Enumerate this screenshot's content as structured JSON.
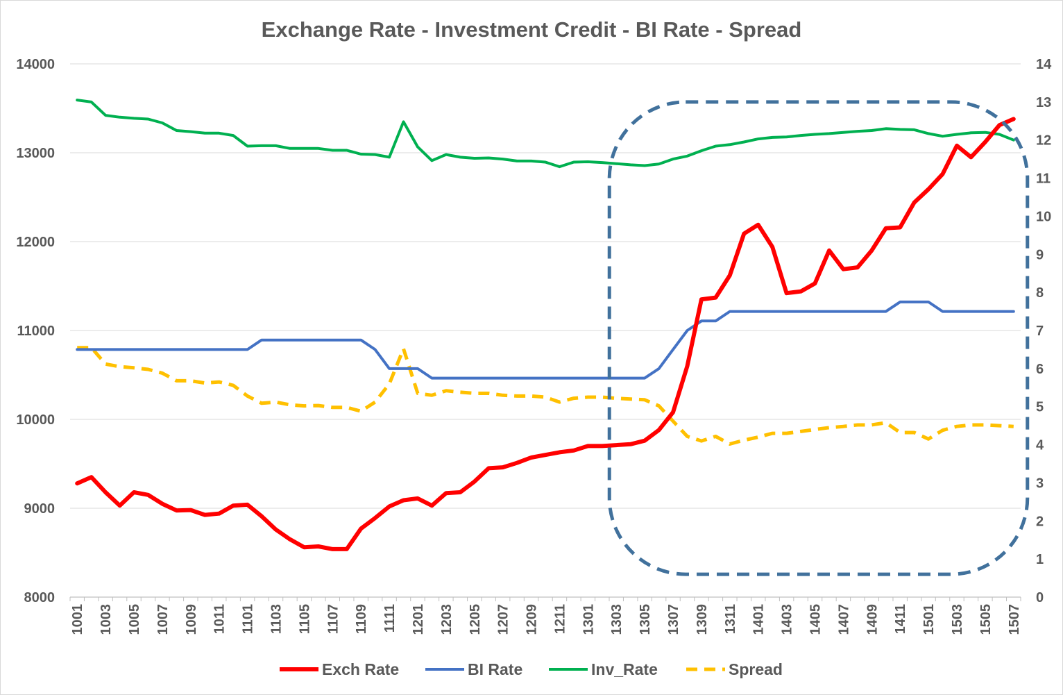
{
  "chart_data": {
    "type": "line",
    "title": "Exchange Rate - Investment Credit - BI Rate - Spread",
    "xlabel": "",
    "ylabel_left": "",
    "ylabel_right": "",
    "x_tick_labels": [
      "1001",
      "1003",
      "1005",
      "1007",
      "1009",
      "1011",
      "1101",
      "1103",
      "1105",
      "1107",
      "1109",
      "1111",
      "1201",
      "1203",
      "1205",
      "1207",
      "1209",
      "1211",
      "1301",
      "1303",
      "1305",
      "1307",
      "1309",
      "1311",
      "1401",
      "1403",
      "1405",
      "1407",
      "1409",
      "1411",
      "1501",
      "1503",
      "1505",
      "1507"
    ],
    "x": [
      "1001",
      "1002",
      "1003",
      "1004",
      "1005",
      "1006",
      "1007",
      "1008",
      "1009",
      "1010",
      "1011",
      "1012",
      "1101",
      "1102",
      "1103",
      "1104",
      "1105",
      "1106",
      "1107",
      "1108",
      "1109",
      "1110",
      "1111",
      "1112",
      "1201",
      "1202",
      "1203",
      "1204",
      "1205",
      "1206",
      "1207",
      "1208",
      "1209",
      "1210",
      "1211",
      "1212",
      "1301",
      "1302",
      "1303",
      "1304",
      "1305",
      "1306",
      "1307",
      "1308",
      "1309",
      "1310",
      "1311",
      "1312",
      "1401",
      "1402",
      "1403",
      "1404",
      "1405",
      "1406",
      "1407",
      "1408",
      "1409",
      "1410",
      "1411",
      "1412",
      "1501",
      "1502",
      "1503",
      "1504",
      "1505",
      "1506",
      "1507"
    ],
    "y_left": {
      "min": 8000,
      "max": 14000,
      "ticks": [
        8000,
        9000,
        10000,
        11000,
        12000,
        13000,
        14000
      ]
    },
    "y_right": {
      "min": 0,
      "max": 14,
      "ticks": [
        0,
        1,
        2,
        3,
        4,
        5,
        6,
        7,
        8,
        9,
        10,
        11,
        12,
        13,
        14
      ]
    },
    "grid": true,
    "legend_position": "bottom",
    "series": [
      {
        "name": "Exch Rate",
        "axis": "left",
        "color": "#ff0000",
        "style": "solid",
        "values": [
          9280,
          9350,
          9180,
          9030,
          9180,
          9150,
          9050,
          8975,
          8980,
          8925,
          8940,
          9030,
          9040,
          8910,
          8760,
          8650,
          8560,
          8570,
          8540,
          8540,
          8770,
          8890,
          9020,
          9090,
          9110,
          9030,
          9170,
          9180,
          9300,
          9450,
          9460,
          9510,
          9570,
          9600,
          9630,
          9650,
          9700,
          9700,
          9710,
          9720,
          9760,
          9880,
          10080,
          10600,
          11350,
          11370,
          11620,
          12090,
          12190,
          11940,
          11420,
          11440,
          11530,
          11900,
          11690,
          11710,
          11900,
          12150,
          12160,
          12440,
          12590,
          12760,
          13080,
          12950,
          13120,
          13310,
          13380
        ]
      },
      {
        "name": "BI Rate",
        "axis": "right",
        "color": "#4472c4",
        "style": "solid",
        "values": [
          6.5,
          6.5,
          6.5,
          6.5,
          6.5,
          6.5,
          6.5,
          6.5,
          6.5,
          6.5,
          6.5,
          6.5,
          6.5,
          6.75,
          6.75,
          6.75,
          6.75,
          6.75,
          6.75,
          6.75,
          6.75,
          6.5,
          6.0,
          6.0,
          6.0,
          5.75,
          5.75,
          5.75,
          5.75,
          5.75,
          5.75,
          5.75,
          5.75,
          5.75,
          5.75,
          5.75,
          5.75,
          5.75,
          5.75,
          5.75,
          5.75,
          6.0,
          6.5,
          7.0,
          7.25,
          7.25,
          7.5,
          7.5,
          7.5,
          7.5,
          7.5,
          7.5,
          7.5,
          7.5,
          7.5,
          7.5,
          7.5,
          7.5,
          7.75,
          7.75,
          7.75,
          7.5,
          7.5,
          7.5,
          7.5,
          7.5,
          7.5
        ]
      },
      {
        "name": "Inv_Rate",
        "axis": "right",
        "color": "#00b050",
        "style": "solid",
        "values": [
          13.05,
          13.0,
          12.65,
          12.6,
          12.57,
          12.55,
          12.45,
          12.25,
          12.22,
          12.18,
          12.18,
          12.12,
          11.84,
          11.85,
          11.85,
          11.78,
          11.78,
          11.78,
          11.73,
          11.73,
          11.63,
          11.62,
          11.55,
          12.48,
          11.82,
          11.46,
          11.62,
          11.55,
          11.52,
          11.53,
          11.5,
          11.45,
          11.45,
          11.42,
          11.3,
          11.42,
          11.43,
          11.41,
          11.38,
          11.35,
          11.33,
          11.37,
          11.5,
          11.58,
          11.72,
          11.84,
          11.88,
          11.95,
          12.03,
          12.07,
          12.08,
          12.12,
          12.15,
          12.17,
          12.2,
          12.23,
          12.25,
          12.3,
          12.28,
          12.27,
          12.17,
          12.1,
          12.15,
          12.19,
          12.2,
          12.15,
          12.0
        ]
      },
      {
        "name": "Spread",
        "axis": "right",
        "color": "#ffc000",
        "style": "dashed",
        "values": [
          6.55,
          6.55,
          6.12,
          6.05,
          6.02,
          5.98,
          5.88,
          5.68,
          5.68,
          5.62,
          5.65,
          5.56,
          5.28,
          5.09,
          5.12,
          5.05,
          5.02,
          5.03,
          4.98,
          4.98,
          4.88,
          5.12,
          5.6,
          6.52,
          5.35,
          5.3,
          5.42,
          5.38,
          5.35,
          5.35,
          5.3,
          5.28,
          5.28,
          5.25,
          5.12,
          5.22,
          5.25,
          5.25,
          5.22,
          5.2,
          5.18,
          5.02,
          4.62,
          4.22,
          4.1,
          4.22,
          4.02,
          4.12,
          4.2,
          4.3,
          4.3,
          4.35,
          4.4,
          4.45,
          4.48,
          4.52,
          4.52,
          4.58,
          4.32,
          4.32,
          4.15,
          4.38,
          4.48,
          4.52,
          4.52,
          4.5,
          4.48
        ]
      }
    ],
    "annotations": [
      {
        "type": "rounded-rectangle",
        "style": "dashed",
        "color": "#41719c",
        "x_from": "1303",
        "x_to": "1507",
        "y_from_right_axis": 0.6,
        "y_to_right_axis": 13.0
      }
    ]
  }
}
